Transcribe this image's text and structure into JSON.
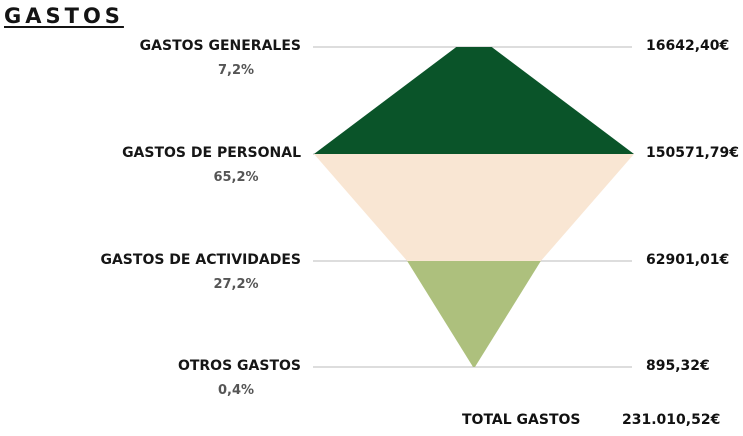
{
  "chart_data": {
    "type": "area",
    "title": "GASTOS",
    "categories": [
      "GASTOS GENERALES",
      "GASTOS DE PERSONAL",
      "GASTOS DE ACTIVIDADES",
      "OTROS GASTOS"
    ],
    "values": [
      16642.4,
      150571.79,
      62901.01,
      895.32
    ],
    "value_labels": [
      "16642,40€",
      "150571,79€",
      "62901,01€",
      "895,32€"
    ],
    "percent_labels": [
      "7,2%",
      "65,2%",
      "27,2%",
      "0,4%"
    ],
    "colors": [
      "#0a5429",
      "#f9e6d3",
      "#adc07d"
    ],
    "gridline_color": "#bbbbbb",
    "total_label": "TOTAL GASTOS",
    "total_value": "231.010,52€"
  }
}
